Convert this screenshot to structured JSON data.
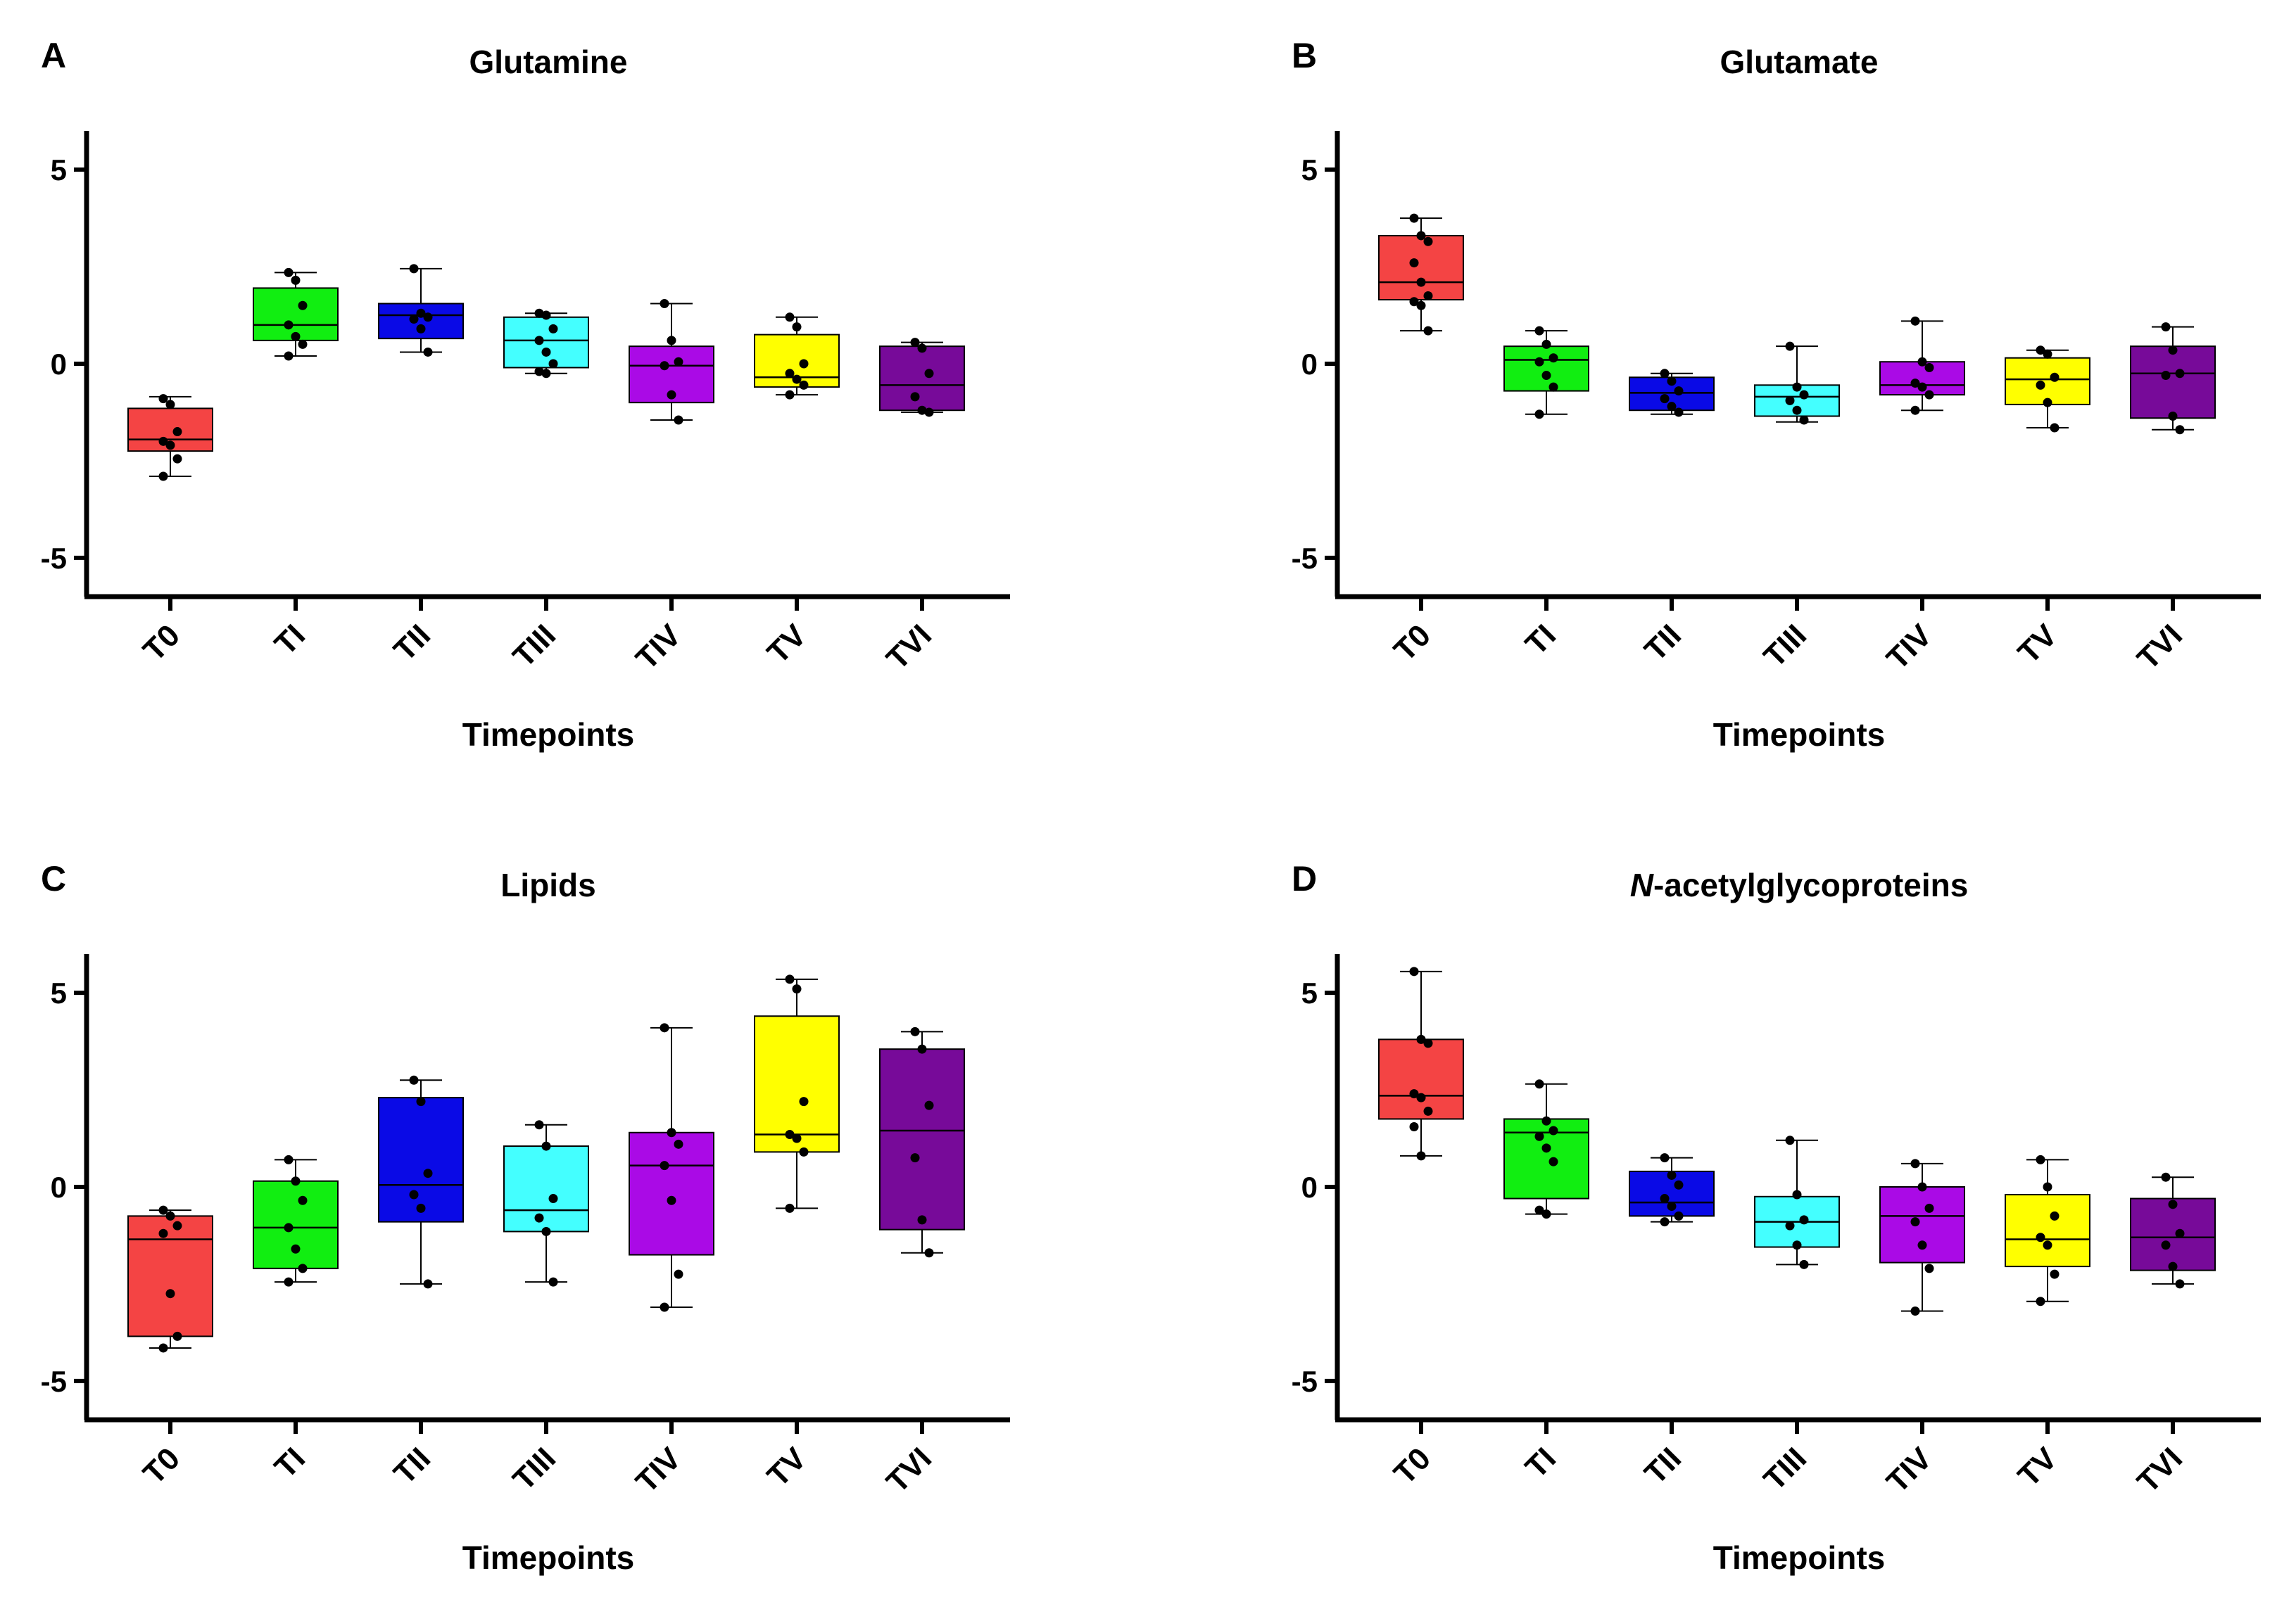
{
  "figure": {
    "x_label": "Timepoints",
    "categories": [
      "T0",
      "TI",
      "TII",
      "TIII",
      "TIV",
      "TV",
      "TVI"
    ],
    "colors": [
      "#f44444",
      "#11ee11",
      "#0a0ae6",
      "#44ffff",
      "#aa0ae6",
      "#ffff00",
      "#770a99"
    ]
  },
  "chart_data": [
    {
      "panel": "A",
      "title": "Glutamine",
      "title_italic_prefix": "",
      "type": "box",
      "xlabel": "Timepoints",
      "ylabel": "",
      "ylim": [
        -6,
        6
      ],
      "yticks": [
        5,
        0,
        -5
      ],
      "ytick_labels": [
        "5",
        "0",
        "-5"
      ],
      "categories": [
        "T0",
        "TI",
        "TII",
        "TIII",
        "TIV",
        "TV",
        "TVI"
      ],
      "boxes": [
        {
          "min": -2.9,
          "q1": -2.25,
          "median": -1.95,
          "q3": -1.15,
          "max": -0.85,
          "points": [
            -0.9,
            -1.05,
            -1.75,
            -2.0,
            -2.1,
            -2.45,
            -2.9
          ]
        },
        {
          "min": 0.2,
          "q1": 0.6,
          "median": 1.0,
          "q3": 1.95,
          "max": 2.35,
          "points": [
            2.35,
            2.15,
            1.5,
            1.0,
            0.7,
            0.5,
            0.2
          ]
        },
        {
          "min": 0.3,
          "q1": 0.65,
          "median": 1.25,
          "q3": 1.55,
          "max": 2.45,
          "points": [
            2.45,
            1.3,
            1.2,
            1.15,
            0.9,
            0.3
          ]
        },
        {
          "min": -0.25,
          "q1": -0.1,
          "median": 0.6,
          "q3": 1.2,
          "max": 1.3,
          "points": [
            1.3,
            1.25,
            0.9,
            0.6,
            0.3,
            0.0,
            -0.2,
            -0.25
          ]
        },
        {
          "min": -1.45,
          "q1": -1.0,
          "median": -0.05,
          "q3": 0.45,
          "max": 1.55,
          "points": [
            1.55,
            0.6,
            0.05,
            -0.05,
            -0.8,
            -1.45
          ]
        },
        {
          "min": -0.8,
          "q1": -0.6,
          "median": -0.35,
          "q3": 0.75,
          "max": 1.2,
          "points": [
            1.2,
            0.95,
            0.0,
            -0.25,
            -0.4,
            -0.55,
            -0.8
          ]
        },
        {
          "min": -1.25,
          "q1": -1.2,
          "median": -0.55,
          "q3": 0.45,
          "max": 0.55,
          "points": [
            0.55,
            0.4,
            -0.25,
            -0.85,
            -1.2,
            -1.25
          ]
        }
      ]
    },
    {
      "panel": "B",
      "title": "Glutamate",
      "title_italic_prefix": "",
      "type": "box",
      "xlabel": "Timepoints",
      "ylabel": "",
      "ylim": [
        -6,
        6
      ],
      "yticks": [
        5,
        0,
        -5
      ],
      "ytick_labels": [
        "5",
        "0",
        "-5"
      ],
      "categories": [
        "T0",
        "TI",
        "TII",
        "TIII",
        "TIV",
        "TV",
        "TVI"
      ],
      "boxes": [
        {
          "min": 0.85,
          "q1": 1.65,
          "median": 2.1,
          "q3": 3.3,
          "max": 3.75,
          "points": [
            3.75,
            3.3,
            3.15,
            2.6,
            2.1,
            1.75,
            1.6,
            1.5,
            0.85
          ]
        },
        {
          "min": -1.3,
          "q1": -0.7,
          "median": 0.1,
          "q3": 0.45,
          "max": 0.85,
          "points": [
            0.85,
            0.5,
            0.15,
            0.05,
            -0.3,
            -0.6,
            -1.3
          ]
        },
        {
          "min": -1.3,
          "q1": -1.2,
          "median": -0.75,
          "q3": -0.35,
          "max": -0.25,
          "points": [
            -0.25,
            -0.45,
            -0.7,
            -0.9,
            -1.1,
            -1.25
          ]
        },
        {
          "min": -1.5,
          "q1": -1.35,
          "median": -0.85,
          "q3": -0.55,
          "max": 0.45,
          "points": [
            0.45,
            -0.6,
            -0.8,
            -0.95,
            -1.2,
            -1.45
          ]
        },
        {
          "min": -1.2,
          "q1": -0.8,
          "median": -0.55,
          "q3": 0.05,
          "max": 1.1,
          "points": [
            1.1,
            0.05,
            -0.1,
            -0.5,
            -0.6,
            -0.8,
            -1.2
          ]
        },
        {
          "min": -1.65,
          "q1": -1.05,
          "median": -0.4,
          "q3": 0.15,
          "max": 0.35,
          "points": [
            0.35,
            0.25,
            -0.35,
            -0.55,
            -1.0,
            -1.65
          ]
        },
        {
          "min": -1.7,
          "q1": -1.4,
          "median": -0.25,
          "q3": 0.45,
          "max": 0.95,
          "points": [
            0.95,
            0.35,
            -0.25,
            -0.3,
            -1.35,
            -1.7
          ]
        }
      ]
    },
    {
      "panel": "C",
      "title": "Lipids",
      "title_italic_prefix": "",
      "type": "box",
      "xlabel": "Timepoints",
      "ylabel": "",
      "ylim": [
        -6,
        6
      ],
      "yticks": [
        5,
        0,
        -5
      ],
      "ytick_labels": [
        "5",
        "0",
        "-5"
      ],
      "categories": [
        "T0",
        "TI",
        "TII",
        "TIII",
        "TIV",
        "TV",
        "TVI"
      ],
      "boxes": [
        {
          "min": -4.15,
          "q1": -3.85,
          "median": -1.35,
          "q3": -0.75,
          "max": -0.6,
          "points": [
            -0.6,
            -0.75,
            -1.0,
            -1.2,
            -2.75,
            -3.85,
            -4.15
          ]
        },
        {
          "min": -2.45,
          "q1": -2.1,
          "median": -1.05,
          "q3": 0.15,
          "max": 0.7,
          "points": [
            0.7,
            0.15,
            -0.35,
            -1.05,
            -1.6,
            -2.1,
            -2.45
          ]
        },
        {
          "min": -2.5,
          "q1": -0.9,
          "median": 0.05,
          "q3": 2.3,
          "max": 2.75,
          "points": [
            2.75,
            2.2,
            0.35,
            -0.2,
            -0.55,
            -2.5
          ]
        },
        {
          "min": -2.45,
          "q1": -1.15,
          "median": -0.6,
          "q3": 1.05,
          "max": 1.6,
          "points": [
            1.6,
            1.05,
            -0.3,
            -0.8,
            -1.15,
            -2.45
          ]
        },
        {
          "min": -3.1,
          "q1": -1.75,
          "median": 0.55,
          "q3": 1.4,
          "max": 4.1,
          "points": [
            4.1,
            1.4,
            1.1,
            0.55,
            -0.35,
            -2.25,
            -3.1
          ]
        },
        {
          "min": -0.55,
          "q1": 0.9,
          "median": 1.35,
          "q3": 4.4,
          "max": 5.35,
          "points": [
            5.35,
            5.1,
            2.2,
            1.35,
            1.25,
            0.9,
            -0.55
          ]
        },
        {
          "min": -1.7,
          "q1": -1.1,
          "median": 1.45,
          "q3": 3.55,
          "max": 4.0,
          "points": [
            4.0,
            3.55,
            2.1,
            0.75,
            -0.85,
            -1.7
          ]
        }
      ]
    },
    {
      "panel": "D",
      "title": "-acetylglycoproteins",
      "title_italic_prefix": "N",
      "type": "box",
      "xlabel": "Timepoints",
      "ylabel": "",
      "ylim": [
        -6,
        6
      ],
      "yticks": [
        5,
        0,
        -5
      ],
      "ytick_labels": [
        "5",
        "0",
        "-5"
      ],
      "categories": [
        "T0",
        "TI",
        "TII",
        "TIII",
        "TIV",
        "TV",
        "TVI"
      ],
      "boxes": [
        {
          "min": 0.8,
          "q1": 1.75,
          "median": 2.35,
          "q3": 3.8,
          "max": 5.55,
          "points": [
            5.55,
            3.8,
            3.7,
            2.4,
            2.3,
            1.95,
            1.55,
            0.8
          ]
        },
        {
          "min": -0.7,
          "q1": -0.3,
          "median": 1.4,
          "q3": 1.75,
          "max": 2.65,
          "points": [
            2.65,
            1.7,
            1.45,
            1.3,
            1.0,
            0.65,
            -0.6,
            -0.7
          ]
        },
        {
          "min": -0.9,
          "q1": -0.75,
          "median": -0.4,
          "q3": 0.4,
          "max": 0.75,
          "points": [
            0.75,
            0.3,
            0.05,
            -0.3,
            -0.5,
            -0.75,
            -0.9
          ]
        },
        {
          "min": -2.0,
          "q1": -1.55,
          "median": -0.9,
          "q3": -0.25,
          "max": 1.2,
          "points": [
            1.2,
            -0.2,
            -0.85,
            -1.0,
            -1.5,
            -2.0
          ]
        },
        {
          "min": -3.2,
          "q1": -1.95,
          "median": -0.75,
          "q3": 0.0,
          "max": 0.6,
          "points": [
            0.6,
            0.0,
            -0.55,
            -0.9,
            -1.5,
            -2.1,
            -3.2
          ]
        },
        {
          "min": -2.95,
          "q1": -2.05,
          "median": -1.35,
          "q3": -0.2,
          "max": 0.7,
          "points": [
            0.7,
            0.0,
            -0.75,
            -1.3,
            -1.5,
            -2.25,
            -2.95
          ]
        },
        {
          "min": -2.5,
          "q1": -2.15,
          "median": -1.3,
          "q3": -0.3,
          "max": 0.25,
          "points": [
            0.25,
            -0.45,
            -1.2,
            -1.5,
            -2.05,
            -2.5
          ]
        }
      ]
    }
  ]
}
